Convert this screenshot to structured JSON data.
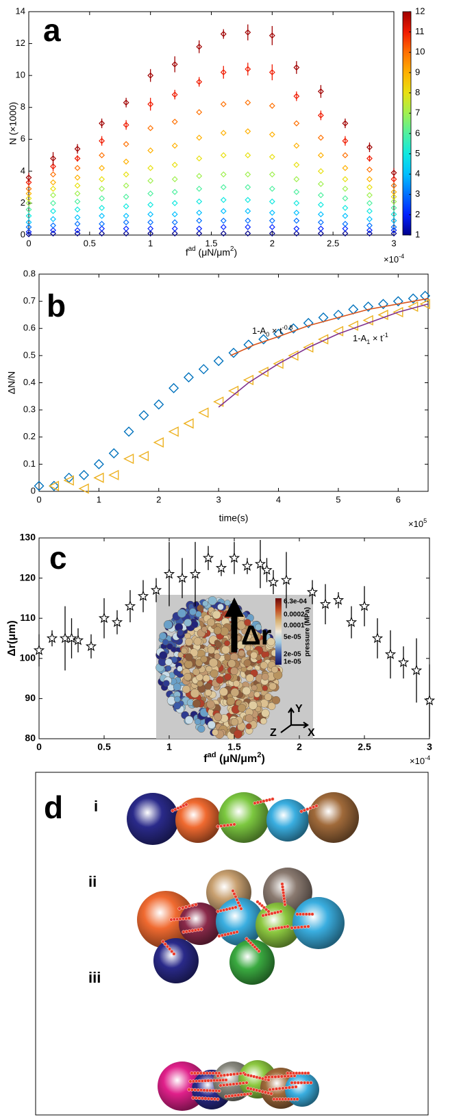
{
  "chart_data": [
    {
      "type": "scatter",
      "label": "a",
      "ylabel": "N (×1000)",
      "xlabel": [
        {
          "text": "f"
        },
        {
          "text": "ad",
          "style": "sup"
        },
        {
          "text": " (μN/μm"
        },
        {
          "text": "2",
          "style": "sup"
        },
        {
          "text": ")"
        }
      ],
      "multiplier": [
        {
          "text": "×10"
        },
        {
          "text": "-4",
          "style": "sup"
        }
      ],
      "x": [
        0,
        0.2,
        0.4,
        0.6,
        0.8,
        1.0,
        1.2,
        1.4,
        1.6,
        1.8,
        2.0,
        2.2,
        2.4,
        2.6,
        2.8,
        3.0
      ],
      "xlim": [
        0,
        3
      ],
      "xticks": [
        0,
        0.5,
        1,
        1.5,
        2,
        2.5,
        3
      ],
      "ylim": [
        0,
        14
      ],
      "yticks": [
        0,
        2,
        4,
        6,
        8,
        10,
        12,
        14
      ],
      "marker": "diamond",
      "colorbar": {
        "lim": [
          1,
          12
        ],
        "ticks": [
          1,
          2,
          3,
          4,
          5,
          6,
          7,
          8,
          9,
          10,
          11,
          12
        ]
      },
      "series": [
        {
          "color": "#00008b",
          "values": [
            0.05,
            0.1,
            0.1,
            0.1,
            0.1,
            0.1,
            0.1,
            0.1,
            0.1,
            0.1,
            0.1,
            0.1,
            0.1,
            0.1,
            0.1,
            0.1
          ]
        },
        {
          "color": "#0020ff",
          "values": [
            0.2,
            0.3,
            0.3,
            0.4,
            0.4,
            0.4,
            0.4,
            0.4,
            0.5,
            0.5,
            0.5,
            0.4,
            0.4,
            0.4,
            0.3,
            0.3
          ]
        },
        {
          "color": "#0070ff",
          "values": [
            0.5,
            0.6,
            0.7,
            0.7,
            0.8,
            0.8,
            0.8,
            0.9,
            0.9,
            0.9,
            0.9,
            0.9,
            0.8,
            0.7,
            0.6,
            0.5
          ]
        },
        {
          "color": "#00bfff",
          "values": [
            0.8,
            1.0,
            1.1,
            1.2,
            1.2,
            1.3,
            1.3,
            1.4,
            1.5,
            1.5,
            1.4,
            1.4,
            1.3,
            1.2,
            1.0,
            0.9
          ]
        },
        {
          "color": "#10e8e0",
          "values": [
            1.2,
            1.5,
            1.6,
            1.7,
            1.8,
            1.9,
            2.0,
            2.1,
            2.2,
            2.2,
            2.1,
            2.0,
            1.9,
            1.7,
            1.5,
            1.3
          ]
        },
        {
          "color": "#50f0a0",
          "values": [
            1.6,
            2.0,
            2.1,
            2.3,
            2.4,
            2.6,
            2.7,
            2.9,
            3.0,
            3.0,
            2.9,
            2.7,
            2.5,
            2.3,
            2.0,
            1.7
          ]
        },
        {
          "color": "#a0f050",
          "values": [
            2.0,
            2.5,
            2.6,
            2.9,
            3.1,
            3.4,
            3.5,
            3.7,
            3.8,
            3.8,
            3.8,
            3.5,
            3.2,
            2.9,
            2.5,
            2.1
          ]
        },
        {
          "color": "#e8e010",
          "values": [
            2.3,
            2.9,
            3.1,
            3.5,
            3.8,
            4.2,
            4.4,
            4.8,
            5.0,
            5.0,
            4.9,
            4.4,
            4.0,
            3.5,
            3.0,
            2.4
          ]
        },
        {
          "color": "#ffb000",
          "values": [
            2.6,
            3.3,
            3.6,
            4.2,
            4.6,
            5.3,
            5.6,
            6.1,
            6.4,
            6.5,
            6.3,
            5.6,
            5.0,
            4.2,
            3.5,
            2.7
          ]
        },
        {
          "color": "#ff7000",
          "values": [
            2.9,
            3.8,
            4.2,
            5.0,
            5.7,
            6.7,
            7.1,
            7.7,
            8.2,
            8.3,
            8.1,
            7.0,
            6.1,
            5.0,
            4.1,
            3.1
          ]
        },
        {
          "color": "#f01a00",
          "values": [
            3.3,
            4.3,
            4.8,
            5.9,
            6.9,
            8.2,
            8.8,
            9.6,
            10.2,
            10.4,
            10.2,
            8.7,
            7.5,
            5.9,
            4.8,
            3.5
          ],
          "errors": [
            0.2,
            0.3,
            0.2,
            0.3,
            0.3,
            0.4,
            0.3,
            0.3,
            0.4,
            0.4,
            0.5,
            0.3,
            0.3,
            0.3,
            0.2,
            0.2
          ]
        },
        {
          "color": "#a00000",
          "values": [
            3.6,
            4.8,
            5.4,
            7.0,
            8.3,
            10.0,
            10.7,
            11.8,
            12.6,
            12.7,
            12.5,
            10.5,
            9.0,
            7.0,
            5.5,
            3.9
          ],
          "errors": [
            0.3,
            0.4,
            0.3,
            0.3,
            0.3,
            0.4,
            0.5,
            0.4,
            0.3,
            0.5,
            0.6,
            0.4,
            0.4,
            0.3,
            0.3,
            0.3
          ]
        }
      ]
    },
    {
      "type": "line",
      "label": "b",
      "ylabel": "ΔN/N",
      "xlabel": "time(s)",
      "multiplier": [
        {
          "text": "×10"
        },
        {
          "text": "5",
          "style": "sup"
        }
      ],
      "xlim": [
        0,
        6.5
      ],
      "xticks": [
        0,
        1,
        2,
        3,
        4,
        5,
        6
      ],
      "ylim": [
        0,
        0.8
      ],
      "yticks": [
        0,
        0.1,
        0.2,
        0.3,
        0.4,
        0.5,
        0.6,
        0.7,
        0.8
      ],
      "series": [
        {
          "color": "#0072bd",
          "marker": "diamond",
          "x": [
            0,
            0.25,
            0.5,
            0.75,
            1.0,
            1.25,
            1.5,
            1.75,
            2.0,
            2.25,
            2.5,
            2.75,
            3.0,
            3.25,
            3.5,
            3.75,
            4.0,
            4.25,
            4.5,
            4.75,
            5.0,
            5.25,
            5.5,
            5.75,
            6.0,
            6.25,
            6.45
          ],
          "values": [
            0.02,
            0.02,
            0.05,
            0.06,
            0.1,
            0.14,
            0.22,
            0.28,
            0.32,
            0.38,
            0.42,
            0.45,
            0.48,
            0.51,
            0.54,
            0.56,
            0.58,
            0.6,
            0.62,
            0.64,
            0.65,
            0.67,
            0.68,
            0.69,
            0.7,
            0.71,
            0.72
          ]
        },
        {
          "color": "#edb120",
          "marker": "triangle-left",
          "x": [
            0.25,
            0.5,
            0.75,
            1.0,
            1.25,
            1.5,
            1.75,
            2.0,
            2.25,
            2.5,
            2.75,
            3.0,
            3.25,
            3.5,
            3.75,
            4.0,
            4.25,
            4.5,
            4.75,
            5.0,
            5.25,
            5.5,
            5.75,
            6.0,
            6.25,
            6.45
          ],
          "values": [
            0.02,
            0.04,
            0.01,
            0.05,
            0.06,
            0.12,
            0.13,
            0.18,
            0.22,
            0.25,
            0.29,
            0.33,
            0.37,
            0.41,
            0.44,
            0.47,
            0.5,
            0.53,
            0.56,
            0.59,
            0.61,
            0.63,
            0.65,
            0.66,
            0.68,
            0.69
          ]
        },
        {
          "color": "#d95319",
          "x": [
            3.2,
            3.6,
            4.0,
            4.5,
            5.0,
            5.5,
            6.0,
            6.5
          ],
          "values": [
            0.5,
            0.54,
            0.57,
            0.61,
            0.64,
            0.67,
            0.69,
            0.71
          ]
        },
        {
          "color": "#7e2f8e",
          "x": [
            3.0,
            3.5,
            4.0,
            4.5,
            5.0,
            5.5,
            6.0,
            6.5
          ],
          "values": [
            0.31,
            0.4,
            0.47,
            0.53,
            0.58,
            0.62,
            0.66,
            0.69
          ]
        }
      ],
      "annotations": [
        [
          {
            "text": "1-A"
          },
          {
            "text": "0",
            "style": "sub"
          },
          {
            "text": " × t"
          },
          {
            "text": "-0.8",
            "style": "sup"
          }
        ],
        [
          {
            "text": "1-A"
          },
          {
            "text": "1",
            "style": "sub"
          },
          {
            "text": " × t"
          },
          {
            "text": "-1",
            "style": "sup"
          }
        ]
      ]
    },
    {
      "type": "scatter",
      "label": "c",
      "ylabel": "Δr(μm)",
      "xlabel": [
        {
          "text": "f"
        },
        {
          "text": "ad",
          "style": "sup"
        },
        {
          "text": " (μN/μm"
        },
        {
          "text": "2",
          "style": "sup"
        },
        {
          "text": ")"
        }
      ],
      "multiplier": [
        {
          "text": "×10"
        },
        {
          "text": "-4",
          "style": "sup"
        }
      ],
      "x": [
        0,
        0.1,
        0.2,
        0.25,
        0.3,
        0.4,
        0.5,
        0.6,
        0.7,
        0.8,
        0.9,
        1.0,
        1.1,
        1.2,
        1.3,
        1.4,
        1.5,
        1.6,
        1.7,
        1.75,
        1.8,
        1.9,
        2.1,
        2.2,
        2.3,
        2.4,
        2.5,
        2.6,
        2.7,
        2.8,
        2.9,
        3.0
      ],
      "xlim": [
        0,
        3
      ],
      "xticks": [
        0,
        0.5,
        1,
        1.5,
        2,
        2.5,
        3
      ],
      "ylim": [
        80,
        130
      ],
      "yticks": [
        80,
        90,
        100,
        110,
        120,
        130
      ],
      "marker": "star",
      "series": [
        {
          "color": "#000000",
          "values": [
            102,
            105,
            105,
            105,
            104.5,
            103,
            110,
            109,
            113,
            115.5,
            117,
            121,
            120,
            121,
            125,
            122.5,
            125,
            123,
            123.5,
            122,
            119,
            119.5,
            116.5,
            113.5,
            114.5,
            109,
            113,
            105,
            101,
            99,
            97,
            89.5
          ],
          "errors": [
            4,
            2,
            8,
            5,
            3,
            3,
            5,
            3,
            4,
            4,
            3,
            8,
            5,
            8,
            3,
            2,
            4,
            2,
            6,
            3,
            3,
            7,
            3,
            5,
            2,
            4,
            5,
            5,
            6,
            4,
            8,
            9
          ]
        }
      ],
      "inset": {
        "colorbar_ticks": [
          "6.3e-04",
          "0.0002",
          "0.0001",
          "5e-05",
          "2e-05",
          "1e-05"
        ],
        "colorbar_label": "pressure (MPa)",
        "arrow_label": "Δr",
        "axes": [
          "Y",
          "Z",
          "X"
        ]
      }
    }
  ],
  "diagram": {
    "label": "d",
    "rows": [
      "i",
      "ii",
      "iii"
    ]
  }
}
